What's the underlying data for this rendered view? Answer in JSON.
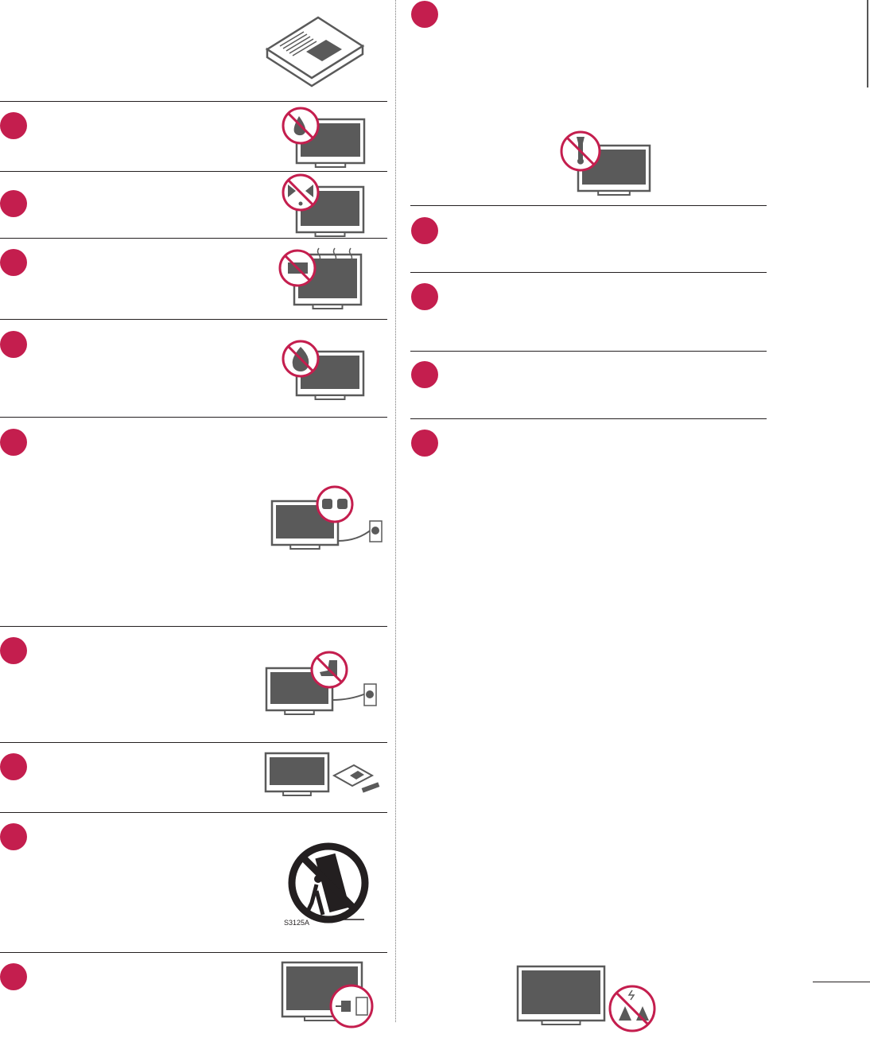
{
  "colors": {
    "accent": "#c41e4e",
    "rule": "#231f20",
    "illustration": "#5a5a5a"
  },
  "illustrations": {
    "stroller_warning_code": "S3125A"
  },
  "icons": [
    "manual-book-icon",
    "no-water-icon",
    "no-spray-icon",
    "no-heat-icon",
    "no-fire-icon",
    "plug-outlet-icon",
    "no-step-on-cord-icon",
    "accessories-icon",
    "cart-tip-warning-icon",
    "unplug-icon",
    "no-repair-icon",
    "no-object-on-tv-icon"
  ]
}
